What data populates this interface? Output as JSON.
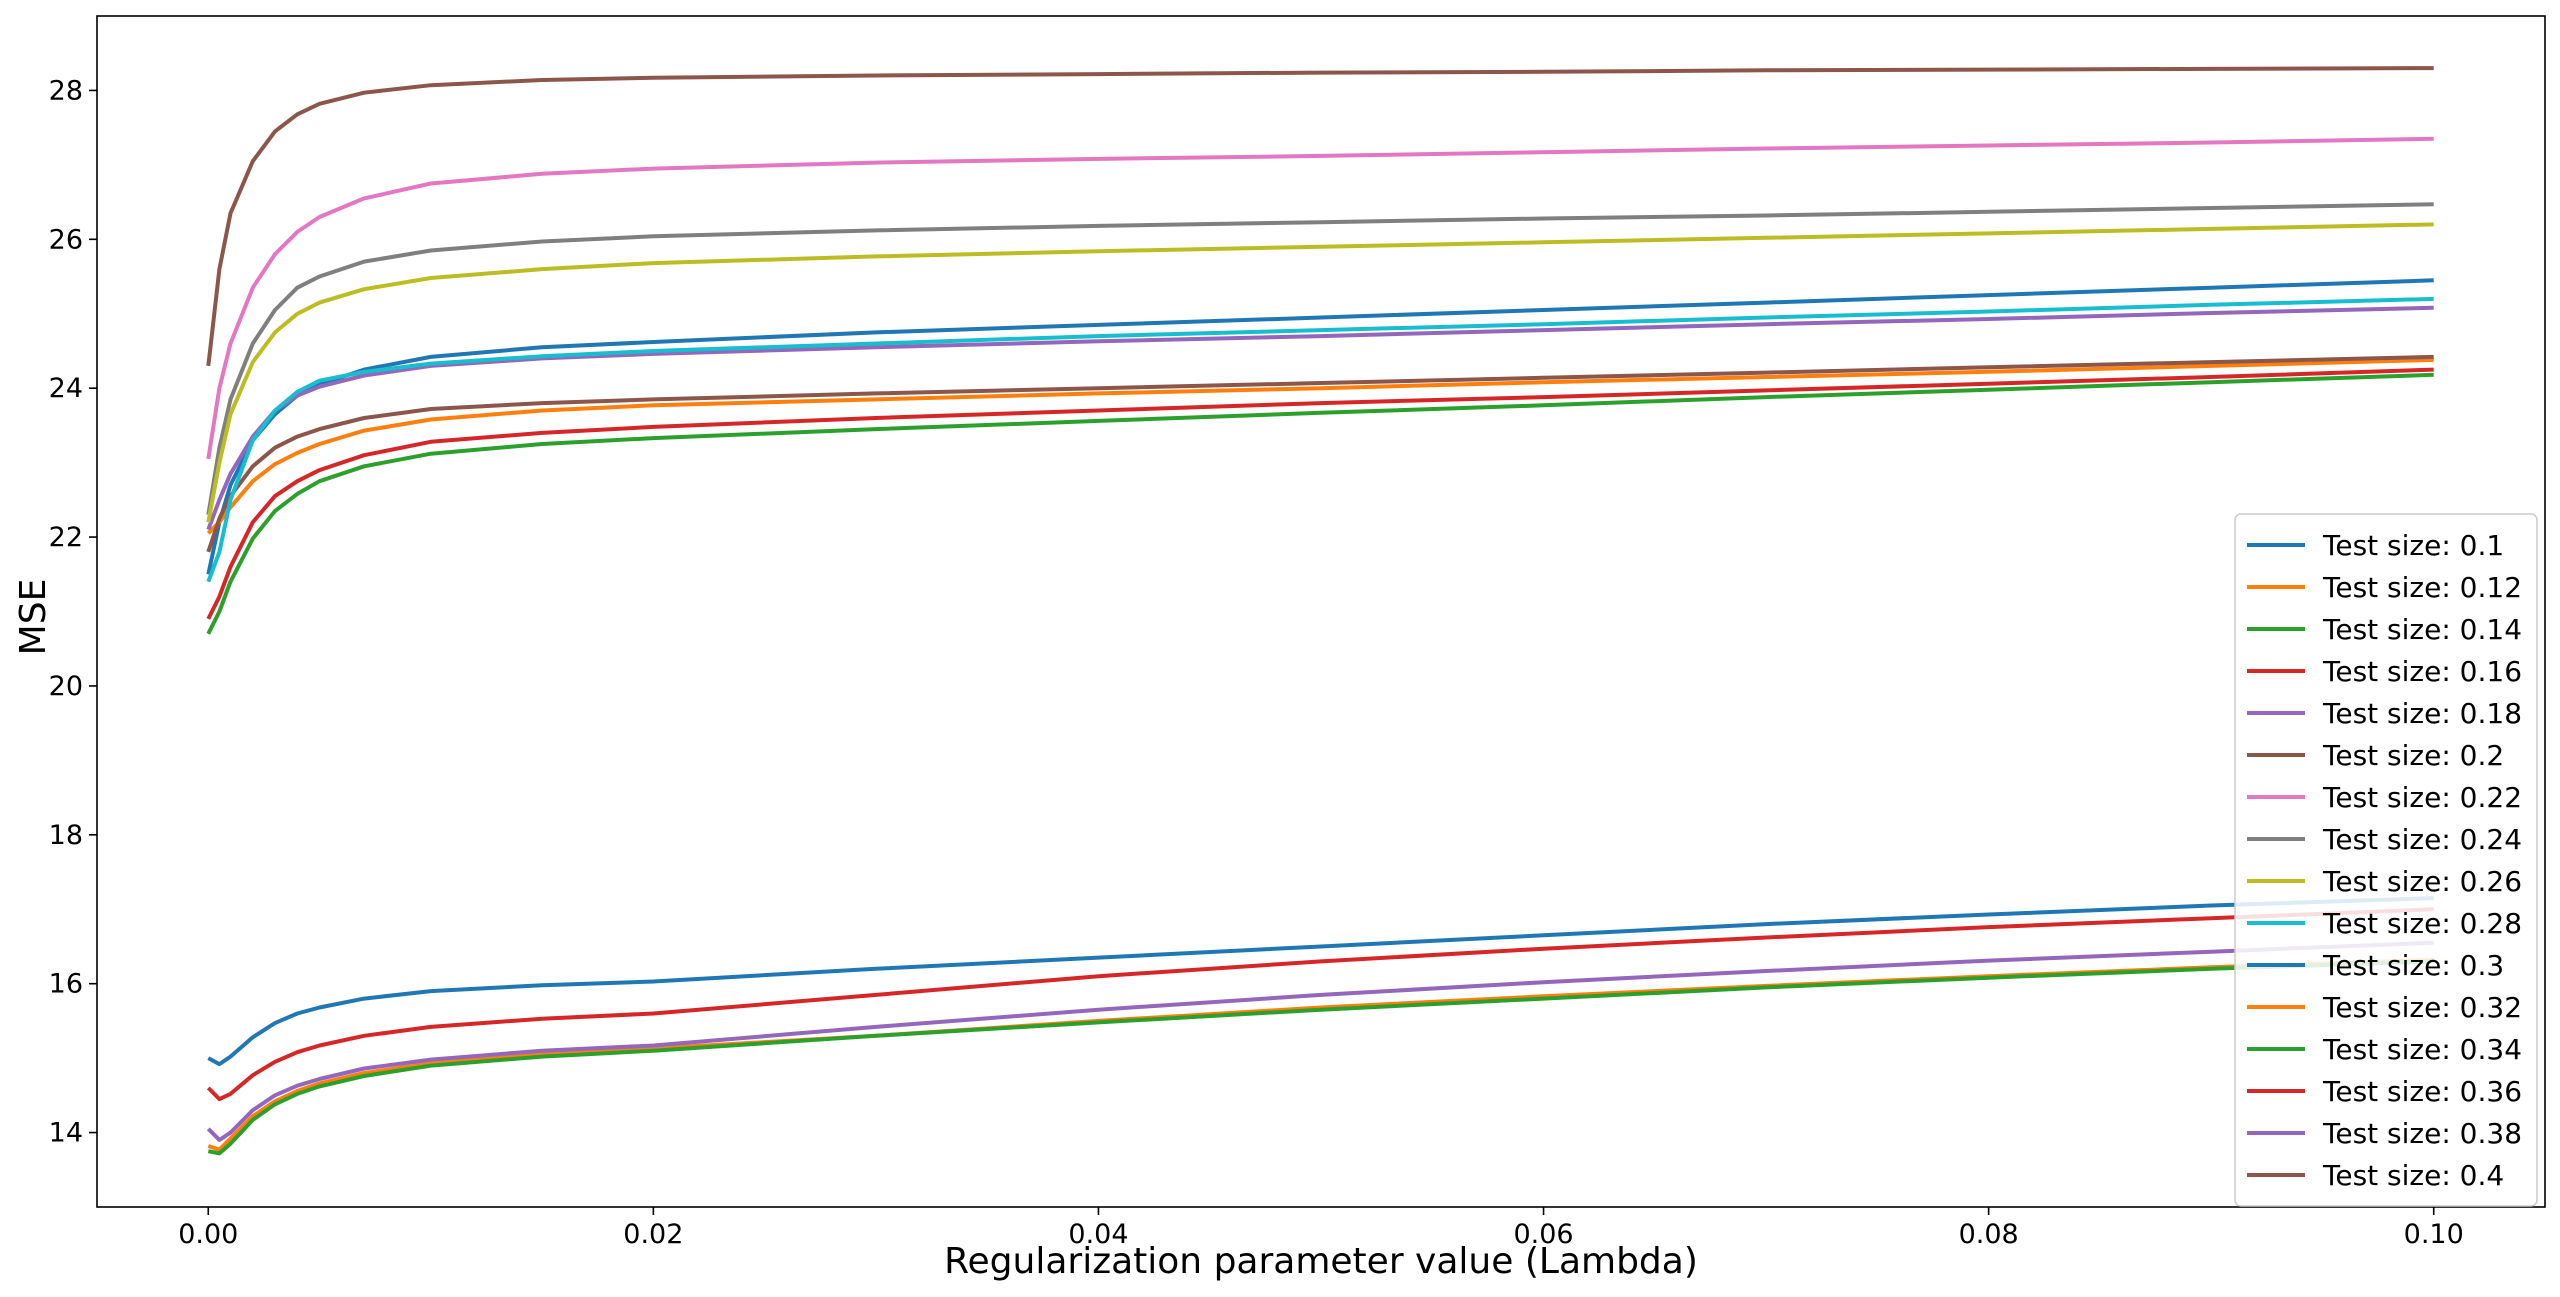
{
  "chart_data": {
    "type": "line",
    "title": "",
    "xlabel": "Regularization parameter value (Lambda)",
    "ylabel": "MSE",
    "xlim": [
      -0.005,
      0.105
    ],
    "ylim": [
      13.0,
      29.0
    ],
    "x_ticks": [
      0.0,
      0.02,
      0.04,
      0.06,
      0.08,
      0.1
    ],
    "x_tick_labels": [
      "0.00",
      "0.02",
      "0.04",
      "0.06",
      "0.08",
      "0.10"
    ],
    "y_ticks": [
      14,
      16,
      18,
      20,
      22,
      24,
      26,
      28
    ],
    "y_tick_labels": [
      "14",
      "16",
      "18",
      "20",
      "22",
      "24",
      "26",
      "28"
    ],
    "grid": false,
    "legend_position": "lower-right",
    "x": [
      0.0,
      0.0005,
      0.001,
      0.002,
      0.003,
      0.004,
      0.005,
      0.007,
      0.01,
      0.015,
      0.02,
      0.03,
      0.04,
      0.05,
      0.06,
      0.07,
      0.08,
      0.09,
      0.1
    ],
    "series": [
      {
        "name": "Test size: 0.1",
        "color": "#1f77b4",
        "values": [
          21.5,
          22.2,
          22.7,
          23.3,
          23.65,
          23.9,
          24.05,
          24.25,
          24.42,
          24.55,
          24.62,
          24.75,
          24.85,
          24.95,
          25.05,
          25.15,
          25.25,
          25.35,
          25.45
        ]
      },
      {
        "name": "Test size: 0.12",
        "color": "#ff7f0e",
        "values": [
          22.05,
          22.2,
          22.4,
          22.75,
          22.98,
          23.13,
          23.25,
          23.43,
          23.58,
          23.7,
          23.77,
          23.85,
          23.93,
          24.0,
          24.08,
          24.15,
          24.22,
          24.3,
          24.38
        ]
      },
      {
        "name": "Test size: 0.14",
        "color": "#2ca02c",
        "values": [
          20.7,
          21.0,
          21.4,
          21.98,
          22.35,
          22.58,
          22.75,
          22.95,
          23.12,
          23.25,
          23.33,
          23.45,
          23.56,
          23.67,
          23.77,
          23.88,
          23.98,
          24.08,
          24.18
        ]
      },
      {
        "name": "Test size: 0.16",
        "color": "#d62728",
        "values": [
          20.9,
          21.2,
          21.6,
          22.2,
          22.55,
          22.75,
          22.9,
          23.1,
          23.28,
          23.4,
          23.48,
          23.6,
          23.7,
          23.8,
          23.88,
          23.97,
          24.06,
          24.15,
          24.25
        ]
      },
      {
        "name": "Test size: 0.18",
        "color": "#9467bd",
        "values": [
          22.1,
          22.5,
          22.85,
          23.35,
          23.7,
          23.9,
          24.02,
          24.17,
          24.3,
          24.4,
          24.46,
          24.55,
          24.63,
          24.7,
          24.78,
          24.86,
          24.93,
          25.01,
          25.08
        ]
      },
      {
        "name": "Test size: 0.2",
        "color": "#8c564b",
        "values": [
          21.8,
          22.25,
          22.55,
          22.95,
          23.2,
          23.35,
          23.45,
          23.6,
          23.72,
          23.8,
          23.85,
          23.93,
          24.0,
          24.07,
          24.14,
          24.21,
          24.28,
          24.35,
          24.42
        ]
      },
      {
        "name": "Test size: 0.22",
        "color": "#e377c2",
        "values": [
          23.05,
          24.0,
          24.6,
          25.35,
          25.8,
          26.1,
          26.3,
          26.55,
          26.75,
          26.88,
          26.95,
          27.03,
          27.08,
          27.12,
          27.17,
          27.22,
          27.26,
          27.3,
          27.35
        ]
      },
      {
        "name": "Test size: 0.24",
        "color": "#7f7f7f",
        "values": [
          22.3,
          23.2,
          23.85,
          24.6,
          25.05,
          25.35,
          25.5,
          25.7,
          25.85,
          25.97,
          26.04,
          26.12,
          26.18,
          26.23,
          26.28,
          26.32,
          26.37,
          26.42,
          26.47
        ]
      },
      {
        "name": "Test size: 0.26",
        "color": "#bcbd22",
        "values": [
          22.2,
          23.0,
          23.65,
          24.35,
          24.75,
          25.0,
          25.15,
          25.33,
          25.48,
          25.6,
          25.68,
          25.77,
          25.84,
          25.9,
          25.96,
          26.02,
          26.08,
          26.14,
          26.2
        ]
      },
      {
        "name": "Test size: 0.28",
        "color": "#17becf",
        "values": [
          21.4,
          21.8,
          22.5,
          23.3,
          23.7,
          23.95,
          24.1,
          24.22,
          24.33,
          24.43,
          24.5,
          24.6,
          24.7,
          24.78,
          24.86,
          24.95,
          25.03,
          25.12,
          25.2
        ]
      },
      {
        "name": "Test size: 0.3",
        "color": "#1f77b4",
        "values": [
          15.0,
          14.92,
          15.02,
          15.28,
          15.47,
          15.6,
          15.68,
          15.8,
          15.9,
          15.98,
          16.03,
          16.2,
          16.35,
          16.5,
          16.65,
          16.8,
          16.93,
          17.05,
          17.15
        ]
      },
      {
        "name": "Test size: 0.32",
        "color": "#ff7f0e",
        "values": [
          13.82,
          13.77,
          13.92,
          14.22,
          14.42,
          14.56,
          14.66,
          14.8,
          14.93,
          15.05,
          15.13,
          15.3,
          15.5,
          15.68,
          15.83,
          15.97,
          16.1,
          16.22,
          16.32
        ]
      },
      {
        "name": "Test size: 0.34",
        "color": "#2ca02c",
        "values": [
          13.75,
          13.72,
          13.85,
          14.17,
          14.38,
          14.52,
          14.62,
          14.76,
          14.9,
          15.02,
          15.1,
          15.3,
          15.48,
          15.65,
          15.8,
          15.95,
          16.08,
          16.2,
          16.3
        ]
      },
      {
        "name": "Test size: 0.36",
        "color": "#d62728",
        "values": [
          14.6,
          14.45,
          14.52,
          14.77,
          14.95,
          15.08,
          15.17,
          15.3,
          15.42,
          15.53,
          15.6,
          15.85,
          16.1,
          16.3,
          16.47,
          16.62,
          16.76,
          16.88,
          17.0
        ]
      },
      {
        "name": "Test size: 0.38",
        "color": "#9467bd",
        "values": [
          14.05,
          13.9,
          14.0,
          14.3,
          14.5,
          14.63,
          14.72,
          14.86,
          14.98,
          15.1,
          15.17,
          15.42,
          15.65,
          15.85,
          16.02,
          16.17,
          16.31,
          16.43,
          16.55
        ]
      },
      {
        "name": "Test size: 0.4",
        "color": "#8c564b",
        "values": [
          24.3,
          25.6,
          26.35,
          27.05,
          27.45,
          27.68,
          27.82,
          27.97,
          28.07,
          28.14,
          28.17,
          28.2,
          28.22,
          28.24,
          28.25,
          28.27,
          28.28,
          28.29,
          28.3
        ]
      }
    ]
  }
}
